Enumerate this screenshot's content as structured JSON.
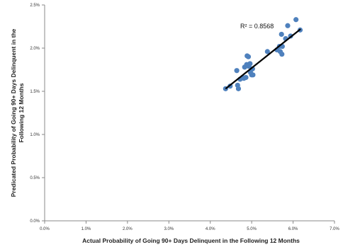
{
  "chart_data": {
    "type": "scatter",
    "xlabel": "Actual Probability of Going 90+ Days Delinquent in the Following 12 Months",
    "ylabel_lines": [
      "Predicated Probability of Going 90+ Days Delinquent in the",
      "Following 12 Months"
    ],
    "xlim": [
      0,
      0.07
    ],
    "ylim": [
      0,
      0.025
    ],
    "x_ticks": [
      0,
      0.01,
      0.02,
      0.03,
      0.04,
      0.05,
      0.06,
      0.07
    ],
    "y_ticks": [
      0,
      0.005,
      0.01,
      0.015,
      0.02,
      0.025
    ],
    "x_tick_labels": [
      "0.0%",
      "1.0%",
      "2.0%",
      "3.0%",
      "4.0%",
      "5.0%",
      "6.0%",
      "7.0%"
    ],
    "y_tick_labels": [
      "0.0%",
      "0.5%",
      "1.0%",
      "1.5%",
      "2.0%",
      "2.5%"
    ],
    "grid": false,
    "annotation": "R² = 0.8568",
    "marker_color": "#4f81bd",
    "trendline_color": "#000000",
    "trendline": {
      "x": [
        0.0437,
        0.0618
      ],
      "y": [
        0.0153,
        0.0222
      ]
    },
    "points": [
      {
        "x": 0.0437,
        "y": 0.0153
      },
      {
        "x": 0.0448,
        "y": 0.0156
      },
      {
        "x": 0.0464,
        "y": 0.0174
      },
      {
        "x": 0.0466,
        "y": 0.0157
      },
      {
        "x": 0.0468,
        "y": 0.0153
      },
      {
        "x": 0.0472,
        "y": 0.0164
      },
      {
        "x": 0.0478,
        "y": 0.0166
      },
      {
        "x": 0.0481,
        "y": 0.0165
      },
      {
        "x": 0.0483,
        "y": 0.0178
      },
      {
        "x": 0.0486,
        "y": 0.0166
      },
      {
        "x": 0.0488,
        "y": 0.0181
      },
      {
        "x": 0.0489,
        "y": 0.0191
      },
      {
        "x": 0.0492,
        "y": 0.019
      },
      {
        "x": 0.0493,
        "y": 0.0179
      },
      {
        "x": 0.0496,
        "y": 0.0182
      },
      {
        "x": 0.0497,
        "y": 0.0172
      },
      {
        "x": 0.05,
        "y": 0.0169
      },
      {
        "x": 0.0502,
        "y": 0.0176
      },
      {
        "x": 0.0503,
        "y": 0.0169
      },
      {
        "x": 0.0538,
        "y": 0.0196
      },
      {
        "x": 0.0561,
        "y": 0.0198
      },
      {
        "x": 0.0567,
        "y": 0.0202
      },
      {
        "x": 0.0569,
        "y": 0.0196
      },
      {
        "x": 0.0572,
        "y": 0.0216
      },
      {
        "x": 0.0573,
        "y": 0.0193
      },
      {
        "x": 0.0574,
        "y": 0.0202
      },
      {
        "x": 0.0582,
        "y": 0.0211
      },
      {
        "x": 0.0587,
        "y": 0.0226
      },
      {
        "x": 0.0594,
        "y": 0.0214
      },
      {
        "x": 0.0607,
        "y": 0.0233
      },
      {
        "x": 0.0617,
        "y": 0.0221
      }
    ]
  }
}
